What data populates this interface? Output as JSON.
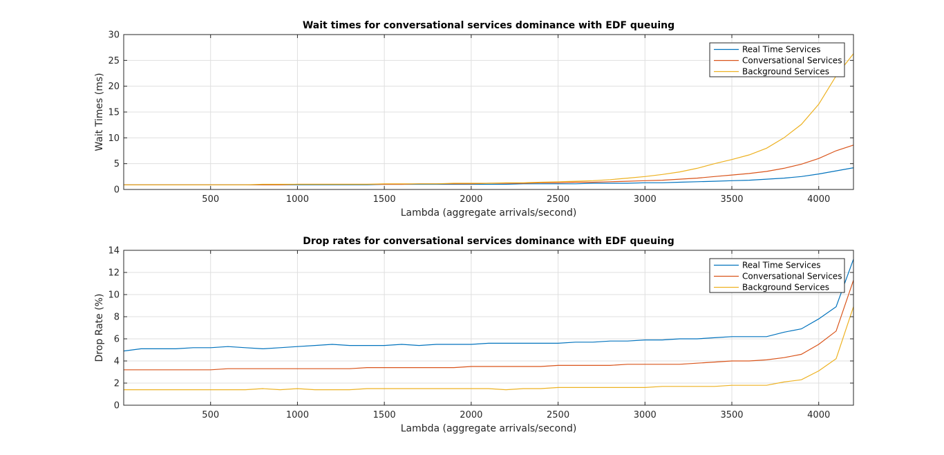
{
  "chart_data": [
    {
      "type": "line",
      "title": "Wait times for conversational services dominance with EDF queuing",
      "xlabel": "Lambda (aggregate arrivals/second)",
      "ylabel": "Wait Times (ms)",
      "xlim": [
        0,
        4200
      ],
      "ylim": [
        0,
        30
      ],
      "xticks": [
        500,
        1000,
        1500,
        2000,
        2500,
        3000,
        3500,
        4000
      ],
      "yticks": [
        0,
        5,
        10,
        15,
        20,
        25,
        30
      ],
      "grid": true,
      "legend": "top-right",
      "x": [
        0,
        100,
        200,
        300,
        400,
        500,
        600,
        700,
        800,
        900,
        1000,
        1100,
        1200,
        1300,
        1400,
        1500,
        1600,
        1700,
        1800,
        1900,
        2000,
        2100,
        2200,
        2300,
        2400,
        2500,
        2600,
        2700,
        2800,
        2900,
        3000,
        3100,
        3200,
        3300,
        3400,
        3500,
        3600,
        3700,
        3800,
        3900,
        4000,
        4100,
        4200
      ],
      "series": [
        {
          "name": "Real Time Services",
          "color": "#0072bd",
          "values": [
            0.9,
            0.9,
            0.9,
            0.9,
            0.9,
            0.9,
            0.9,
            0.9,
            0.9,
            0.9,
            0.9,
            0.9,
            0.9,
            0.9,
            0.9,
            1.0,
            1.0,
            1.0,
            1.0,
            1.0,
            1.0,
            1.0,
            1.0,
            1.1,
            1.1,
            1.1,
            1.1,
            1.2,
            1.2,
            1.2,
            1.3,
            1.3,
            1.4,
            1.5,
            1.6,
            1.7,
            1.8,
            2.0,
            2.2,
            2.5,
            3.0,
            3.6,
            4.2
          ]
        },
        {
          "name": "Conversational Services",
          "color": "#d95319",
          "values": [
            0.9,
            0.9,
            0.9,
            0.9,
            0.9,
            0.9,
            0.9,
            0.9,
            0.9,
            0.9,
            1.0,
            1.0,
            1.0,
            1.0,
            1.0,
            1.0,
            1.0,
            1.1,
            1.1,
            1.1,
            1.1,
            1.2,
            1.2,
            1.2,
            1.3,
            1.3,
            1.4,
            1.4,
            1.5,
            1.6,
            1.7,
            1.8,
            2.0,
            2.2,
            2.5,
            2.8,
            3.1,
            3.5,
            4.1,
            4.9,
            6.0,
            7.5,
            8.6
          ]
        },
        {
          "name": "Background Services",
          "color": "#edb120",
          "values": [
            0.9,
            0.9,
            0.9,
            0.9,
            0.9,
            0.9,
            0.9,
            0.9,
            1.0,
            1.0,
            1.0,
            1.0,
            1.0,
            1.0,
            1.0,
            1.1,
            1.1,
            1.1,
            1.1,
            1.2,
            1.2,
            1.2,
            1.3,
            1.3,
            1.4,
            1.5,
            1.6,
            1.7,
            1.9,
            2.2,
            2.5,
            2.9,
            3.4,
            4.1,
            5.0,
            5.8,
            6.7,
            8.0,
            10.0,
            12.6,
            16.5,
            22.0,
            26.3
          ]
        }
      ]
    },
    {
      "type": "line",
      "title": "Drop rates for conversational services dominance with EDF queuing",
      "xlabel": "Lambda (aggregate arrivals/second)",
      "ylabel": "Drop Rate (%)",
      "xlim": [
        0,
        4200
      ],
      "ylim": [
        0,
        14
      ],
      "xticks": [
        500,
        1000,
        1500,
        2000,
        2500,
        3000,
        3500,
        4000
      ],
      "yticks": [
        0,
        2,
        4,
        6,
        8,
        10,
        12,
        14
      ],
      "grid": true,
      "legend": "top-right",
      "x": [
        0,
        100,
        200,
        300,
        400,
        500,
        600,
        700,
        800,
        900,
        1000,
        1100,
        1200,
        1300,
        1400,
        1500,
        1600,
        1700,
        1800,
        1900,
        2000,
        2100,
        2200,
        2300,
        2400,
        2500,
        2600,
        2700,
        2800,
        2900,
        3000,
        3100,
        3200,
        3300,
        3400,
        3500,
        3600,
        3700,
        3800,
        3900,
        4000,
        4100,
        4200
      ],
      "series": [
        {
          "name": "Real Time Services",
          "color": "#0072bd",
          "values": [
            4.9,
            5.1,
            5.1,
            5.1,
            5.2,
            5.2,
            5.3,
            5.2,
            5.1,
            5.2,
            5.3,
            5.4,
            5.5,
            5.4,
            5.4,
            5.4,
            5.5,
            5.4,
            5.5,
            5.5,
            5.5,
            5.6,
            5.6,
            5.6,
            5.6,
            5.6,
            5.7,
            5.7,
            5.8,
            5.8,
            5.9,
            5.9,
            6.0,
            6.0,
            6.1,
            6.2,
            6.2,
            6.2,
            6.6,
            6.9,
            7.8,
            8.9,
            13.2
          ]
        },
        {
          "name": "Conversational Services",
          "color": "#d95319",
          "values": [
            3.2,
            3.2,
            3.2,
            3.2,
            3.2,
            3.2,
            3.3,
            3.3,
            3.3,
            3.3,
            3.3,
            3.3,
            3.3,
            3.3,
            3.4,
            3.4,
            3.4,
            3.4,
            3.4,
            3.4,
            3.5,
            3.5,
            3.5,
            3.5,
            3.5,
            3.6,
            3.6,
            3.6,
            3.6,
            3.7,
            3.7,
            3.7,
            3.7,
            3.8,
            3.9,
            4.0,
            4.0,
            4.1,
            4.3,
            4.6,
            5.5,
            6.7,
            11.3
          ]
        },
        {
          "name": "Background Services",
          "color": "#edb120",
          "values": [
            1.4,
            1.4,
            1.4,
            1.4,
            1.4,
            1.4,
            1.4,
            1.4,
            1.5,
            1.4,
            1.5,
            1.4,
            1.4,
            1.4,
            1.5,
            1.5,
            1.5,
            1.5,
            1.5,
            1.5,
            1.5,
            1.5,
            1.4,
            1.5,
            1.5,
            1.6,
            1.6,
            1.6,
            1.6,
            1.6,
            1.6,
            1.7,
            1.7,
            1.7,
            1.7,
            1.8,
            1.8,
            1.8,
            2.1,
            2.3,
            3.1,
            4.2,
            8.9
          ]
        }
      ]
    }
  ]
}
